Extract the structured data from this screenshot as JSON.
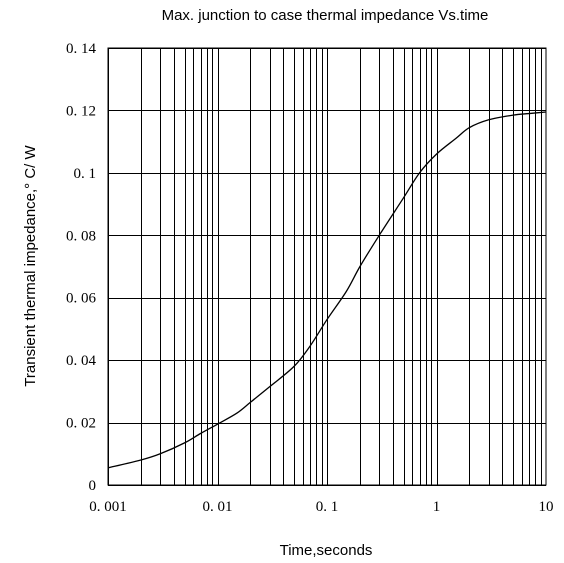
{
  "chart_data": {
    "type": "line",
    "title": "Max. junction to case thermal impedance Vs.time",
    "xlabel": "Time,seconds",
    "ylabel": "Transient thermal impedance,° C/ W",
    "x_scale": "log",
    "xlim": [
      0.001,
      10
    ],
    "ylim": [
      0,
      0.14
    ],
    "grid": true,
    "x_ticks": [
      "0.001",
      "0.01",
      "0.1",
      "1",
      "10"
    ],
    "y_ticks": [
      "0",
      "0.02",
      "0.04",
      "0.06",
      "0.08",
      "0.1",
      "0.12",
      "0.14"
    ],
    "series": [
      {
        "x": [
          0.001,
          0.002,
          0.003,
          0.005,
          0.007,
          0.01,
          0.015,
          0.02,
          0.03,
          0.05,
          0.07,
          0.1,
          0.15,
          0.2,
          0.3,
          0.5,
          0.7,
          1,
          1.5,
          2,
          3,
          5,
          7,
          10
        ],
        "y": [
          0.0055,
          0.008,
          0.01,
          0.0135,
          0.0165,
          0.0195,
          0.023,
          0.0265,
          0.0315,
          0.038,
          0.0445,
          0.053,
          0.062,
          0.07,
          0.08,
          0.092,
          0.1,
          0.106,
          0.111,
          0.1145,
          0.117,
          0.1185,
          0.119,
          0.1195
        ]
      }
    ]
  }
}
